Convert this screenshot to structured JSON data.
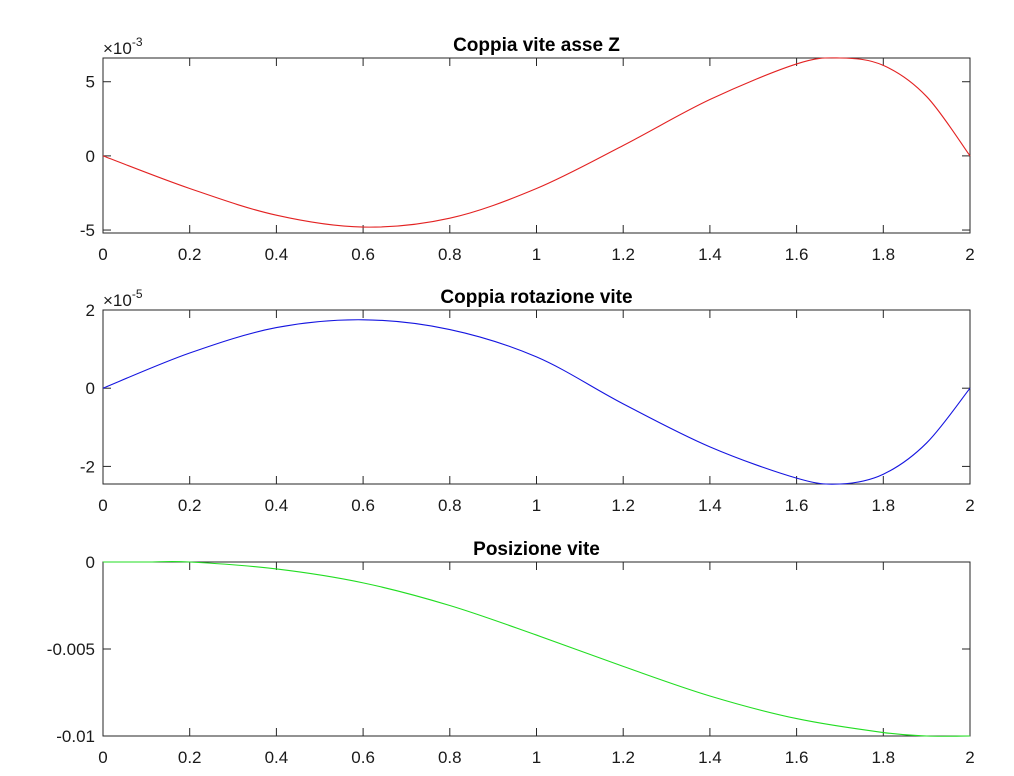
{
  "chart_data": [
    {
      "type": "line",
      "title": "Coppia vite asse Z",
      "xlabel": "",
      "ylabel": "",
      "xlim": [
        0,
        2
      ],
      "ylim": [
        -5.2,
        6.6
      ],
      "exponent_label": "×10",
      "exponent_power": "-3",
      "xticks": [
        0,
        0.2,
        0.4,
        0.6,
        0.8,
        1,
        1.2,
        1.4,
        1.6,
        1.8,
        2
      ],
      "xtick_labels": [
        "0",
        "0.2",
        "0.4",
        "0.6",
        "0.8",
        "1",
        "1.2",
        "1.4",
        "1.6",
        "1.8",
        "2"
      ],
      "yticks": [
        -5,
        0,
        5
      ],
      "ytick_labels": [
        "-5",
        "0",
        "5"
      ],
      "grid": false,
      "series": [
        {
          "color": "#e32222",
          "x": [
            0,
            0.2,
            0.4,
            0.6,
            0.8,
            1,
            1.2,
            1.4,
            1.6,
            1.7,
            1.8,
            1.9,
            2
          ],
          "y": [
            0,
            -2.2,
            -4.0,
            -4.8,
            -4.2,
            -2.2,
            0.7,
            3.8,
            6.2,
            6.6,
            6.1,
            4.0,
            0
          ]
        }
      ]
    },
    {
      "type": "line",
      "title": "Coppia rotazione vite",
      "xlabel": "",
      "ylabel": "",
      "xlim": [
        0,
        2
      ],
      "ylim": [
        -2.45,
        2.0
      ],
      "exponent_label": "×10",
      "exponent_power": "-5",
      "xticks": [
        0,
        0.2,
        0.4,
        0.6,
        0.8,
        1,
        1.2,
        1.4,
        1.6,
        1.8,
        2
      ],
      "xtick_labels": [
        "0",
        "0.2",
        "0.4",
        "0.6",
        "0.8",
        "1",
        "1.2",
        "1.4",
        "1.6",
        "1.8",
        "2"
      ],
      "yticks": [
        -2,
        0,
        2
      ],
      "ytick_labels": [
        "-2",
        "0",
        "2"
      ],
      "grid": false,
      "series": [
        {
          "color": "#1515e0",
          "x": [
            0,
            0.2,
            0.4,
            0.6,
            0.8,
            1,
            1.2,
            1.4,
            1.6,
            1.7,
            1.8,
            1.9,
            2
          ],
          "y": [
            0,
            0.9,
            1.55,
            1.75,
            1.5,
            0.8,
            -0.4,
            -1.5,
            -2.3,
            -2.45,
            -2.2,
            -1.4,
            0
          ]
        }
      ]
    },
    {
      "type": "line",
      "title": "Posizione vite",
      "xlabel": "",
      "ylabel": "",
      "xlim": [
        0,
        2
      ],
      "ylim": [
        -0.01,
        0
      ],
      "xticks": [
        0,
        0.2,
        0.4,
        0.6,
        0.8,
        1,
        1.2,
        1.4,
        1.6,
        1.8,
        2
      ],
      "xtick_labels": [
        "0",
        "0.2",
        "0.4",
        "0.6",
        "0.8",
        "1",
        "1.2",
        "1.4",
        "1.6",
        "1.8",
        "2"
      ],
      "yticks": [
        -0.01,
        -0.005,
        0
      ],
      "ytick_labels": [
        "-0.01",
        "-0.005",
        "0"
      ],
      "grid": false,
      "series": [
        {
          "color": "#22dd22",
          "x": [
            0,
            0.1,
            0.2,
            0.4,
            0.6,
            0.8,
            1,
            1.2,
            1.4,
            1.6,
            1.8,
            1.9,
            2
          ],
          "y": [
            0,
            0,
            0,
            -0.0004,
            -0.0012,
            -0.0025,
            -0.0042,
            -0.006,
            -0.0077,
            -0.009,
            -0.0098,
            -0.01,
            -0.01
          ]
        }
      ]
    }
  ]
}
